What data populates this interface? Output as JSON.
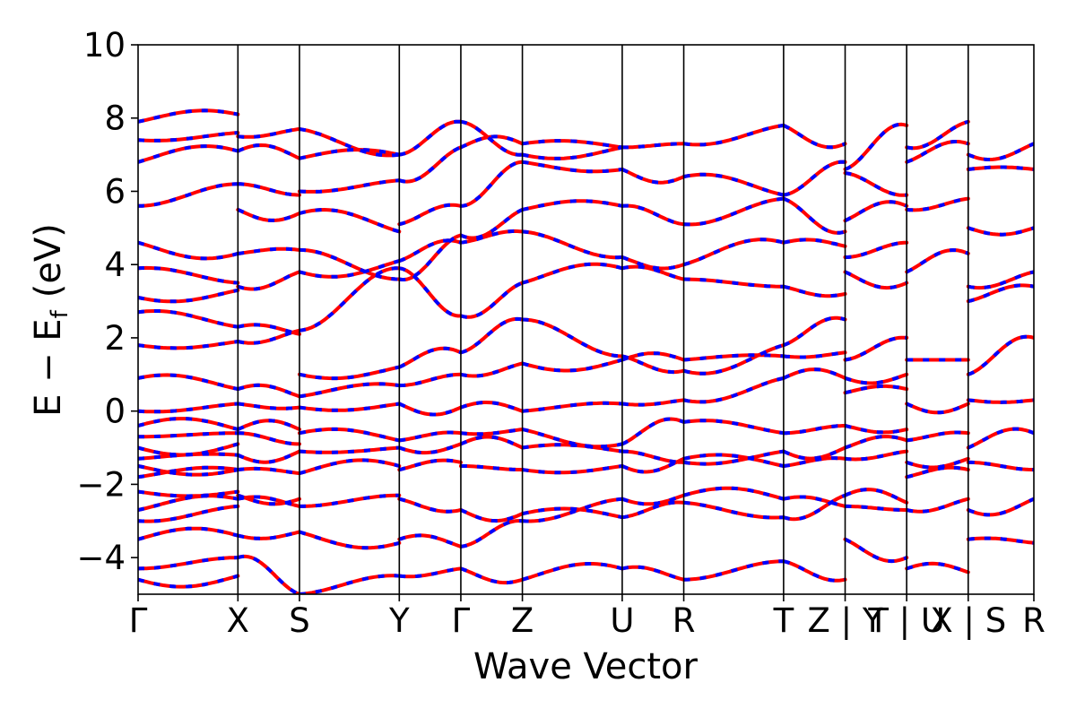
{
  "chart_data": {
    "type": "line",
    "title": "",
    "xlabel": "Wave Vector",
    "ylabel_main": "E − E",
    "ylabel_sub": "f",
    "ylabel_unit": "(eV)",
    "ylim": [
      -5,
      10
    ],
    "yticks": [
      -4,
      -2,
      0,
      2,
      4,
      6,
      8,
      10
    ],
    "ytick_labels": [
      "−4",
      "−2",
      "0",
      "2",
      "4",
      "6",
      "8",
      "10"
    ],
    "xlim": [
      0,
      6.55
    ],
    "kpoints": [
      {
        "x": 0.0,
        "label": "Γ"
      },
      {
        "x": 0.73,
        "label": "X"
      },
      {
        "x": 1.18,
        "label": "S"
      },
      {
        "x": 1.91,
        "label": "Y"
      },
      {
        "x": 2.36,
        "label": "Γ"
      },
      {
        "x": 2.81,
        "label": "Z"
      },
      {
        "x": 3.54,
        "label": "U"
      },
      {
        "x": 3.99,
        "label": "R"
      },
      {
        "x": 4.72,
        "label": "T"
      },
      {
        "x": 5.17,
        "label": "Z | Y"
      },
      {
        "x": 5.62,
        "label": "T | U"
      },
      {
        "x": 6.07,
        "label": "X | S"
      },
      {
        "x": 6.55,
        "label": "R"
      }
    ],
    "series": [
      {
        "color": "#ff0000",
        "style": "solid"
      },
      {
        "color": "#0000ff",
        "style": "dashed"
      }
    ],
    "segment_bands": [
      [
        [
          -4.6,
          -4.5
        ],
        [
          -4.3,
          -4.0
        ],
        [
          -3.5,
          -3.4
        ],
        [
          -3.0,
          -2.6
        ],
        [
          -2.7,
          -2.4
        ],
        [
          -2.2,
          -2.2
        ],
        [
          -1.8,
          -1.6
        ],
        [
          -1.5,
          -1.6
        ],
        [
          -1.3,
          -1.2
        ],
        [
          -1.0,
          -0.9
        ],
        [
          -0.7,
          -0.6
        ],
        [
          -0.4,
          -0.5
        ],
        [
          0.0,
          0.2
        ],
        [
          0.9,
          0.6
        ],
        [
          1.8,
          1.9
        ],
        [
          2.7,
          2.3
        ],
        [
          3.1,
          3.3
        ],
        [
          3.9,
          3.5
        ],
        [
          4.6,
          4.3
        ],
        [
          5.6,
          6.2
        ],
        [
          6.8,
          7.1
        ],
        [
          7.4,
          7.6
        ],
        [
          7.9,
          8.1
        ]
      ],
      [
        [
          -4.0,
          -5.0
        ],
        [
          -3.4,
          -3.3
        ],
        [
          -2.4,
          -2.6
        ],
        [
          -2.3,
          -2.4
        ],
        [
          -1.6,
          -1.7
        ],
        [
          -1.2,
          -1.1
        ],
        [
          -0.6,
          -0.9
        ],
        [
          -0.5,
          -0.5
        ],
        [
          0.2,
          0.1
        ],
        [
          0.6,
          0.4
        ],
        [
          1.9,
          2.2
        ],
        [
          2.3,
          2.1
        ],
        [
          3.4,
          3.8
        ],
        [
          4.3,
          4.4
        ],
        [
          5.5,
          5.4
        ],
        [
          6.2,
          5.9
        ],
        [
          7.1,
          6.9
        ],
        [
          7.5,
          7.7
        ]
      ],
      [
        [
          -5.0,
          -4.5
        ],
        [
          -3.3,
          -3.6
        ],
        [
          -2.6,
          -2.3
        ],
        [
          -1.7,
          -1.5
        ],
        [
          -1.1,
          -1.0
        ],
        [
          -0.6,
          -0.8
        ],
        [
          0.1,
          0.2
        ],
        [
          0.4,
          0.7
        ],
        [
          1.0,
          1.2
        ],
        [
          2.2,
          3.9
        ],
        [
          3.8,
          4.1
        ],
        [
          4.4,
          3.6
        ],
        [
          5.4,
          4.9
        ],
        [
          6.0,
          6.3
        ],
        [
          6.9,
          7.0
        ],
        [
          7.7,
          7.0
        ]
      ],
      [
        [
          -4.5,
          -4.3
        ],
        [
          -3.5,
          -3.7
        ],
        [
          -2.4,
          -2.7
        ],
        [
          -1.6,
          -1.4
        ],
        [
          -1.0,
          -0.9
        ],
        [
          -0.8,
          -0.6
        ],
        [
          0.2,
          0.1
        ],
        [
          0.7,
          1.0
        ],
        [
          1.2,
          1.6
        ],
        [
          3.9,
          2.6
        ],
        [
          4.1,
          4.6
        ],
        [
          3.6,
          4.8
        ],
        [
          5.1,
          5.6
        ],
        [
          6.3,
          7.2
        ],
        [
          7.0,
          7.9
        ]
      ],
      [
        [
          -4.3,
          -4.6
        ],
        [
          -3.7,
          -3.0
        ],
        [
          -2.7,
          -2.8
        ],
        [
          -1.5,
          -1.6
        ],
        [
          -0.9,
          -1.0
        ],
        [
          -0.6,
          -0.5
        ],
        [
          0.1,
          0.0
        ],
        [
          1.0,
          1.3
        ],
        [
          1.6,
          2.5
        ],
        [
          2.6,
          3.5
        ],
        [
          4.6,
          4.9
        ],
        [
          4.8,
          5.5
        ],
        [
          5.6,
          6.8
        ],
        [
          7.2,
          7.3
        ],
        [
          7.9,
          7.0
        ]
      ],
      [
        [
          -4.6,
          -4.3
        ],
        [
          -3.0,
          -2.4
        ],
        [
          -2.8,
          -2.9
        ],
        [
          -1.6,
          -1.5
        ],
        [
          -1.0,
          -1.1
        ],
        [
          -0.5,
          -0.9
        ],
        [
          0.0,
          0.2
        ],
        [
          1.3,
          1.4
        ],
        [
          2.5,
          1.5
        ],
        [
          3.5,
          3.9
        ],
        [
          4.9,
          4.2
        ],
        [
          5.5,
          5.6
        ],
        [
          6.8,
          6.6
        ],
        [
          7.3,
          7.2
        ],
        [
          7.0,
          7.2
        ]
      ],
      [
        [
          -4.3,
          -4.6
        ],
        [
          -2.4,
          -2.3
        ],
        [
          -2.9,
          -2.5
        ],
        [
          -1.5,
          -1.3
        ],
        [
          -1.1,
          -1.4
        ],
        [
          -0.9,
          -0.3
        ],
        [
          0.2,
          0.3
        ],
        [
          1.4,
          1.4
        ],
        [
          1.5,
          1.1
        ],
        [
          3.9,
          3.6
        ],
        [
          4.2,
          4.0
        ],
        [
          5.6,
          5.1
        ],
        [
          6.6,
          6.4
        ],
        [
          7.2,
          7.3
        ]
      ],
      [
        [
          -4.6,
          -4.1
        ],
        [
          -2.3,
          -2.4
        ],
        [
          -2.5,
          -2.9
        ],
        [
          -1.3,
          -1.5
        ],
        [
          -1.4,
          -1.1
        ],
        [
          -0.3,
          -0.6
        ],
        [
          0.3,
          0.9
        ],
        [
          1.4,
          1.5
        ],
        [
          1.1,
          1.8
        ],
        [
          3.6,
          3.4
        ],
        [
          4.0,
          4.6
        ],
        [
          5.1,
          5.8
        ],
        [
          6.4,
          5.9
        ],
        [
          7.3,
          7.8
        ]
      ],
      [
        [
          -4.1,
          -4.6
        ],
        [
          -2.4,
          -2.6
        ],
        [
          -2.9,
          -2.3
        ],
        [
          -1.5,
          -1.3
        ],
        [
          -1.1,
          -1.0
        ],
        [
          -0.6,
          -0.4
        ],
        [
          0.9,
          0.9
        ],
        [
          1.5,
          1.6
        ],
        [
          1.8,
          2.5
        ],
        [
          3.4,
          3.2
        ],
        [
          4.6,
          4.5
        ],
        [
          5.8,
          4.9
        ],
        [
          5.9,
          6.8
        ],
        [
          7.8,
          7.3
        ]
      ],
      [
        [
          -3.5,
          -4.0
        ],
        [
          -2.6,
          -2.7
        ],
        [
          -2.3,
          -2.5
        ],
        [
          -1.3,
          -1.1
        ],
        [
          -1.0,
          -0.8
        ],
        [
          -0.4,
          -0.5
        ],
        [
          0.5,
          0.6
        ],
        [
          0.9,
          1.0
        ],
        [
          1.4,
          2.0
        ],
        [
          3.8,
          3.5
        ],
        [
          4.2,
          4.6
        ],
        [
          5.2,
          5.6
        ],
        [
          6.5,
          5.9
        ],
        [
          6.6,
          7.8
        ]
      ],
      [
        [
          -4.3,
          -4.4
        ],
        [
          -2.7,
          -2.4
        ],
        [
          -1.8,
          -1.6
        ],
        [
          -1.4,
          -1.3
        ],
        [
          -0.8,
          -0.6
        ],
        [
          0.2,
          0.2
        ],
        [
          1.4,
          1.4
        ],
        [
          3.8,
          4.3
        ],
        [
          5.5,
          5.8
        ],
        [
          6.8,
          7.3
        ],
        [
          7.2,
          7.9
        ]
      ],
      [
        [
          -3.5,
          -3.6
        ],
        [
          -2.7,
          -2.4
        ],
        [
          -1.4,
          -1.6
        ],
        [
          -1.0,
          -0.6
        ],
        [
          0.3,
          0.3
        ],
        [
          1.0,
          2.0
        ],
        [
          3.4,
          3.8
        ],
        [
          3.0,
          3.4
        ],
        [
          5.0,
          5.0
        ],
        [
          6.6,
          6.6
        ],
        [
          7.0,
          7.3
        ]
      ]
    ]
  }
}
